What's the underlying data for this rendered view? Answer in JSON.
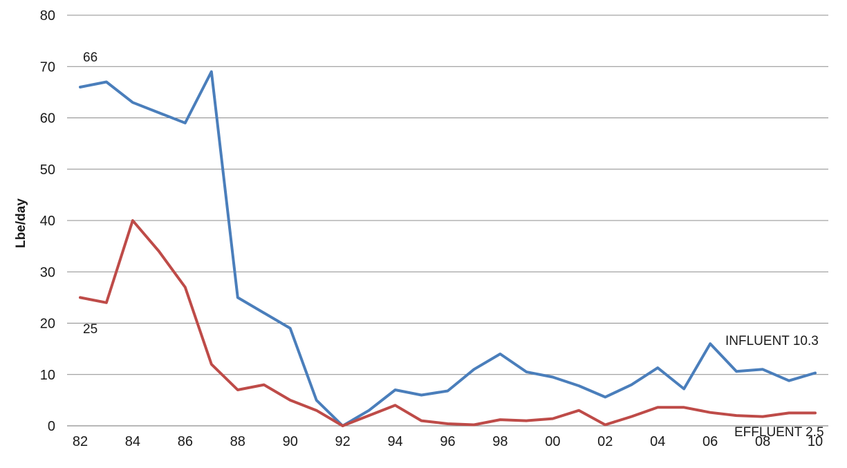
{
  "chart_data": {
    "type": "line",
    "ylabel": "Lbe/day",
    "xlabel": "",
    "ylim": [
      0,
      80
    ],
    "yticks": [
      0,
      10,
      20,
      30,
      40,
      50,
      60,
      70,
      80
    ],
    "x": [
      "82",
      "83",
      "84",
      "85",
      "86",
      "87",
      "88",
      "89",
      "90",
      "91",
      "92",
      "93",
      "94",
      "95",
      "96",
      "97",
      "98",
      "99",
      "00",
      "01",
      "02",
      "03",
      "04",
      "05",
      "06",
      "07",
      "08",
      "09",
      "10"
    ],
    "xtick_labels": [
      "82",
      "84",
      "86",
      "88",
      "90",
      "92",
      "94",
      "96",
      "98",
      "00",
      "02",
      "04",
      "06",
      "08",
      "10"
    ],
    "grid": "horizontal",
    "series": [
      {
        "color": "#4a7ebb",
        "values": [
          66,
          67,
          63,
          61,
          59,
          69,
          25,
          22,
          19,
          5,
          0,
          3,
          7,
          6,
          6.8,
          11,
          14,
          10.5,
          9.5,
          7.8,
          5.6,
          8,
          11.3,
          7.2,
          16,
          10.6,
          11,
          8.8,
          10.3
        ]
      },
      {
        "color": "#be4b48",
        "values": [
          25,
          24,
          40,
          34,
          27,
          12,
          7,
          8,
          5,
          3,
          0,
          2,
          4,
          1,
          0.4,
          0.2,
          1.2,
          1,
          1.4,
          3,
          0.2,
          1.8,
          3.6,
          3.6,
          2.6,
          2,
          1.8,
          2.5,
          2.5
        ]
      }
    ],
    "annotations": [
      {
        "id": "influent-start",
        "text": "66"
      },
      {
        "id": "effluent-start",
        "text": "25"
      },
      {
        "id": "influent-end",
        "text": "INFLUENT 10.3"
      },
      {
        "id": "effluent-end",
        "text": "EFFLUENT 2.5"
      }
    ]
  }
}
